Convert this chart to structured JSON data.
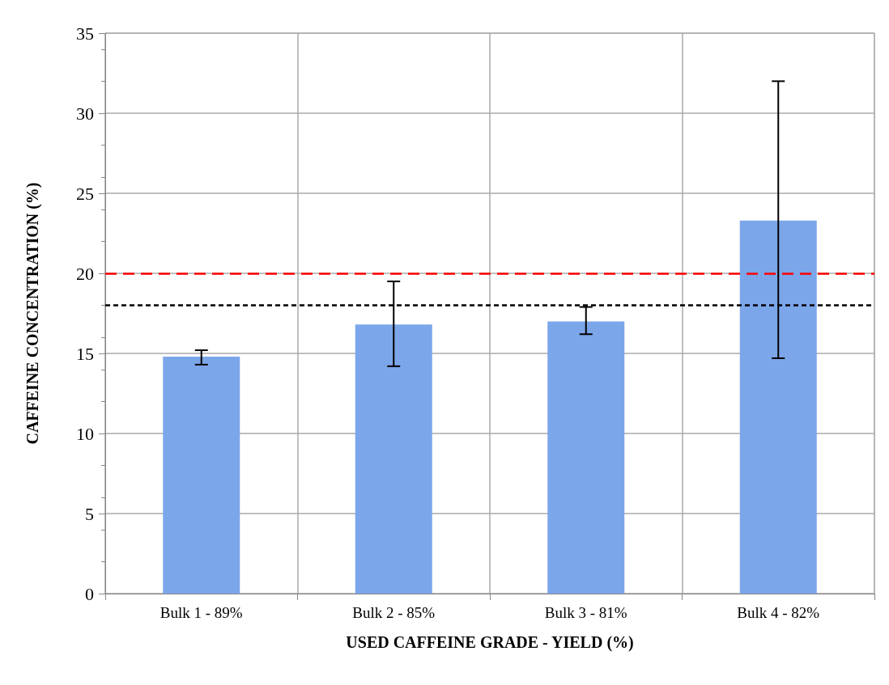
{
  "chart_data": {
    "type": "bar",
    "xlabel": "USED CAFFEINE GRADE - YIELD (%)",
    "ylabel": "CAFFEINE CONCENTRATION (%)",
    "categories": [
      "Bulk 1 - 89%",
      "Bulk 2 - 85%",
      "Bulk 3 - 81%",
      "Bulk 4 - 82%"
    ],
    "values": [
      14.8,
      16.8,
      17.0,
      23.3
    ],
    "errors": [
      [
        14.3,
        15.2
      ],
      [
        14.2,
        19.5
      ],
      [
        16.2,
        17.9
      ],
      [
        14.7,
        32.0
      ]
    ],
    "color": "#7ba6ea",
    "ylim": [
      0,
      35
    ],
    "yticks": [
      0,
      5,
      10,
      15,
      20,
      25,
      30,
      35
    ],
    "grid": true,
    "ref_lines": [
      {
        "axis": "y",
        "value": 20,
        "color": "#ff0000",
        "line_style": "dashed"
      },
      {
        "axis": "y",
        "value": 18,
        "color": "#000000",
        "line_style": "dotted"
      }
    ]
  }
}
